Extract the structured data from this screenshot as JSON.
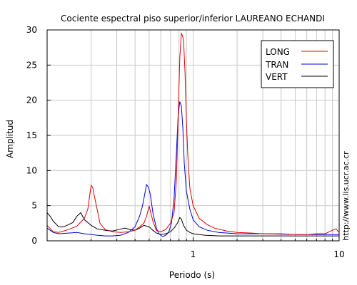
{
  "chart_data": {
    "type": "line",
    "title": "Cociente espectral piso superior/inferior LAUREANO ECHANDI",
    "xlabel": "Periodo (s)",
    "ylabel": "Amplitud",
    "x_scale": "log",
    "xlim": [
      0.1,
      10
    ],
    "ylim": [
      0,
      30
    ],
    "x_ticks": [
      1,
      10
    ],
    "y_ticks": [
      0,
      5,
      10,
      15,
      20,
      25,
      30
    ],
    "grid": true,
    "legend_position": "top-right",
    "side_note": "http://www.lis.ucr.ac.cr",
    "series": [
      {
        "name": "LONG",
        "color": "#dd0000",
        "points": [
          [
            0.1,
            2.2
          ],
          [
            0.11,
            1.3
          ],
          [
            0.12,
            1.2
          ],
          [
            0.14,
            1.6
          ],
          [
            0.16,
            2.1
          ],
          [
            0.18,
            3.2
          ],
          [
            0.19,
            4.5
          ],
          [
            0.2,
            7.9
          ],
          [
            0.205,
            7.6
          ],
          [
            0.21,
            6.5
          ],
          [
            0.22,
            4.5
          ],
          [
            0.23,
            2.5
          ],
          [
            0.25,
            1.6
          ],
          [
            0.28,
            1.3
          ],
          [
            0.32,
            1.2
          ],
          [
            0.36,
            1.3
          ],
          [
            0.4,
            1.5
          ],
          [
            0.43,
            2.0
          ],
          [
            0.46,
            2.5
          ],
          [
            0.48,
            3.5
          ],
          [
            0.5,
            5.0
          ],
          [
            0.51,
            4.2
          ],
          [
            0.53,
            2.8
          ],
          [
            0.56,
            1.5
          ],
          [
            0.6,
            1.3
          ],
          [
            0.65,
            1.6
          ],
          [
            0.7,
            2.5
          ],
          [
            0.74,
            4.0
          ],
          [
            0.77,
            9.0
          ],
          [
            0.79,
            18.0
          ],
          [
            0.81,
            26.0
          ],
          [
            0.83,
            29.5
          ],
          [
            0.845,
            29.2
          ],
          [
            0.86,
            28.5
          ],
          [
            0.88,
            24.0
          ],
          [
            0.9,
            17.0
          ],
          [
            0.92,
            12.0
          ],
          [
            0.95,
            7.5
          ],
          [
            1.0,
            5.0
          ],
          [
            1.1,
            3.2
          ],
          [
            1.25,
            2.3
          ],
          [
            1.4,
            1.8
          ],
          [
            1.7,
            1.4
          ],
          [
            2.0,
            1.2
          ],
          [
            2.5,
            1.1
          ],
          [
            3.0,
            1.0
          ],
          [
            4.0,
            1.0
          ],
          [
            5.0,
            0.9
          ],
          [
            6.0,
            0.9
          ],
          [
            7.0,
            1.0
          ],
          [
            8.0,
            1.0
          ],
          [
            9.0,
            1.5
          ],
          [
            9.5,
            1.7
          ],
          [
            10.0,
            1.2
          ]
        ]
      },
      {
        "name": "TRAN",
        "color": "#0000dd",
        "points": [
          [
            0.1,
            1.8
          ],
          [
            0.11,
            1.2
          ],
          [
            0.12,
            1.0
          ],
          [
            0.14,
            1.1
          ],
          [
            0.16,
            1.2
          ],
          [
            0.18,
            1.0
          ],
          [
            0.2,
            0.9
          ],
          [
            0.22,
            0.8
          ],
          [
            0.25,
            0.7
          ],
          [
            0.28,
            0.7
          ],
          [
            0.32,
            0.8
          ],
          [
            0.36,
            1.2
          ],
          [
            0.4,
            2.0
          ],
          [
            0.43,
            3.5
          ],
          [
            0.45,
            5.0
          ],
          [
            0.47,
            7.0
          ],
          [
            0.48,
            8.0
          ],
          [
            0.495,
            7.6
          ],
          [
            0.51,
            6.5
          ],
          [
            0.53,
            4.0
          ],
          [
            0.56,
            1.8
          ],
          [
            0.58,
            1.1
          ],
          [
            0.6,
            0.8
          ],
          [
            0.62,
            0.6
          ],
          [
            0.65,
            0.8
          ],
          [
            0.68,
            1.2
          ],
          [
            0.71,
            2.5
          ],
          [
            0.74,
            6.0
          ],
          [
            0.77,
            13.0
          ],
          [
            0.79,
            18.0
          ],
          [
            0.81,
            19.8
          ],
          [
            0.83,
            19.2
          ],
          [
            0.85,
            16.0
          ],
          [
            0.87,
            11.0
          ],
          [
            0.9,
            7.0
          ],
          [
            0.95,
            4.5
          ],
          [
            1.0,
            3.0
          ],
          [
            1.1,
            2.0
          ],
          [
            1.25,
            1.5
          ],
          [
            1.5,
            1.2
          ],
          [
            2.0,
            1.0
          ],
          [
            3.0,
            1.0
          ],
          [
            5.0,
            0.9
          ],
          [
            7.0,
            0.9
          ],
          [
            10.0,
            0.9
          ]
        ]
      },
      {
        "name": "VERT",
        "color": "#000000",
        "points": [
          [
            0.1,
            4.0
          ],
          [
            0.105,
            3.5
          ],
          [
            0.11,
            2.8
          ],
          [
            0.12,
            2.0
          ],
          [
            0.13,
            2.0
          ],
          [
            0.14,
            2.3
          ],
          [
            0.15,
            2.6
          ],
          [
            0.16,
            3.5
          ],
          [
            0.17,
            4.0
          ],
          [
            0.18,
            3.0
          ],
          [
            0.19,
            2.6
          ],
          [
            0.2,
            2.2
          ],
          [
            0.22,
            1.7
          ],
          [
            0.25,
            1.5
          ],
          [
            0.28,
            1.4
          ],
          [
            0.31,
            1.6
          ],
          [
            0.34,
            1.8
          ],
          [
            0.37,
            1.6
          ],
          [
            0.4,
            1.5
          ],
          [
            0.43,
            1.8
          ],
          [
            0.46,
            2.2
          ],
          [
            0.5,
            2.0
          ],
          [
            0.53,
            1.5
          ],
          [
            0.56,
            1.1
          ],
          [
            0.6,
            0.9
          ],
          [
            0.65,
            1.0
          ],
          [
            0.7,
            1.3
          ],
          [
            0.74,
            1.8
          ],
          [
            0.78,
            2.5
          ],
          [
            0.81,
            3.3
          ],
          [
            0.83,
            3.1
          ],
          [
            0.86,
            2.2
          ],
          [
            0.9,
            1.5
          ],
          [
            0.95,
            1.2
          ],
          [
            1.0,
            1.0
          ],
          [
            1.2,
            0.8
          ],
          [
            1.5,
            0.7
          ],
          [
            2.0,
            0.7
          ],
          [
            3.0,
            0.7
          ],
          [
            5.0,
            0.7
          ],
          [
            7.0,
            0.7
          ],
          [
            10.0,
            0.7
          ]
        ]
      }
    ]
  }
}
